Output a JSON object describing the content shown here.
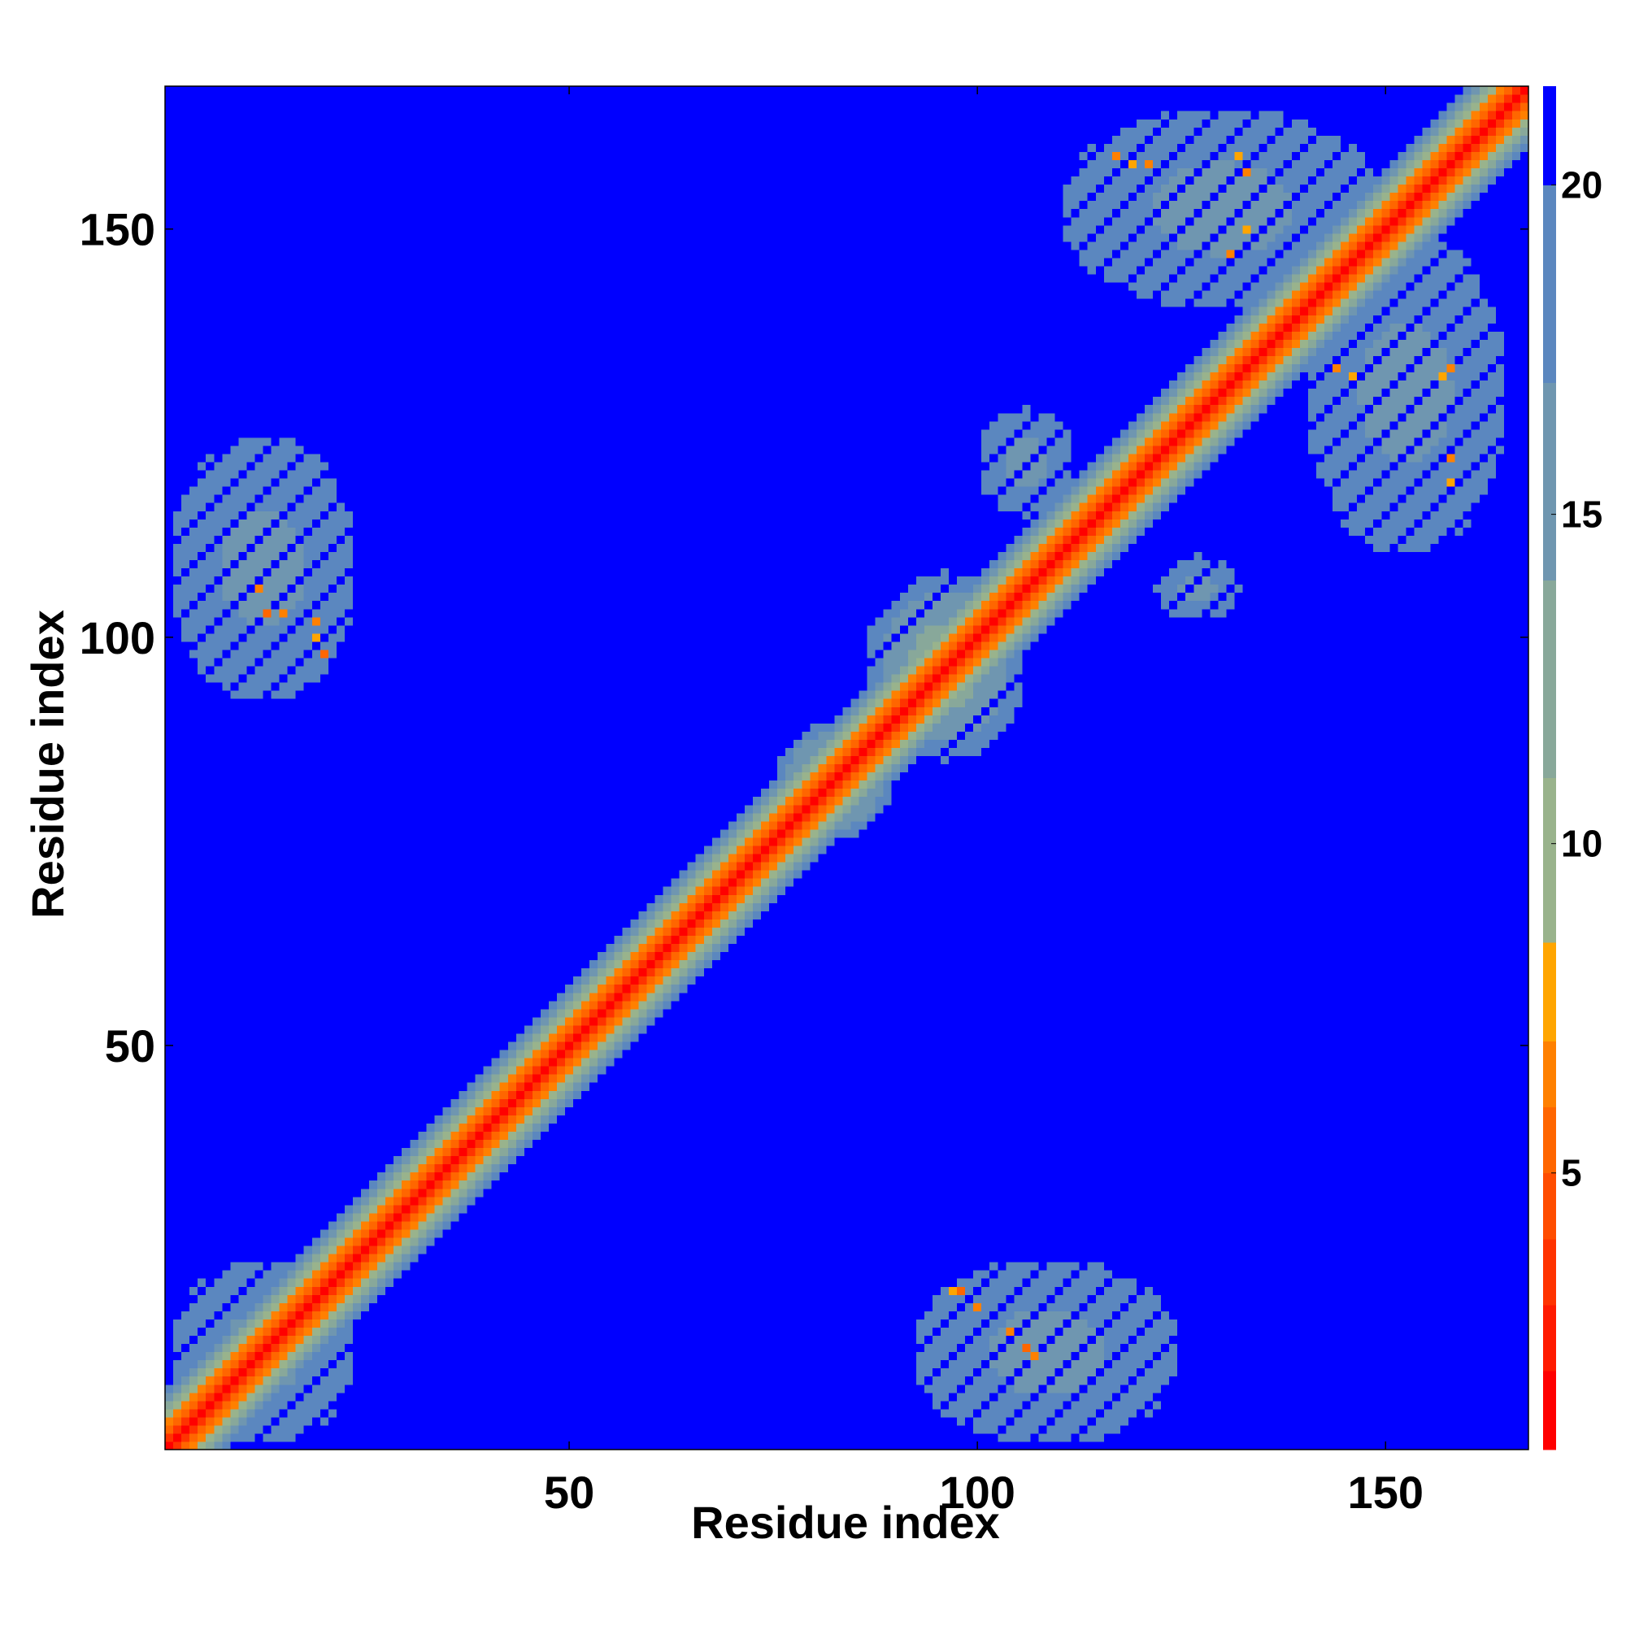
{
  "chart_data": {
    "type": "heatmap",
    "title": "",
    "xlabel": "Residue index",
    "ylabel": "Residue index",
    "n_residues": 167,
    "xlim": [
      0.5,
      167.5
    ],
    "ylim": [
      0.5,
      167.5
    ],
    "x_ticks": [
      50,
      100,
      150
    ],
    "y_ticks": [
      50,
      100,
      150
    ],
    "colorbar": {
      "range": [
        0.8,
        21.5
      ],
      "ticks": [
        5,
        10,
        15,
        20
      ],
      "levels": [
        {
          "from": 0.8,
          "to": 2.0,
          "color": "#ff0000"
        },
        {
          "from": 2.0,
          "to": 3.0,
          "color": "#ff1a00"
        },
        {
          "from": 3.0,
          "to": 4.0,
          "color": "#ff3300"
        },
        {
          "from": 4.0,
          "to": 5.0,
          "color": "#ff4d00"
        },
        {
          "from": 5.0,
          "to": 6.0,
          "color": "#ff6600"
        },
        {
          "from": 6.0,
          "to": 7.0,
          "color": "#ff8000"
        },
        {
          "from": 7.0,
          "to": 8.5,
          "color": "#ffa500"
        },
        {
          "from": 8.5,
          "to": 11.0,
          "color": "#99b38c"
        },
        {
          "from": 11.0,
          "to": 14.0,
          "color": "#88a89a"
        },
        {
          "from": 14.0,
          "to": 17.0,
          "color": "#6f96b0"
        },
        {
          "from": 17.0,
          "to": 20.0,
          "color": "#5b87bf"
        },
        {
          "from": 20.0,
          "to": 21.5,
          "color": "#0000ff"
        }
      ]
    },
    "background_value": 21,
    "diagonal_band": {
      "description": "distance grows with |i-j| along the main diagonal",
      "profile": [
        {
          "offset": 0,
          "value": 1.5
        },
        {
          "offset": 1,
          "value": 3.8
        },
        {
          "offset": 2,
          "value": 5.5
        },
        {
          "offset": 3,
          "value": 6.5
        },
        {
          "offset": 4,
          "value": 10
        },
        {
          "offset": 5,
          "value": 12.5
        },
        {
          "offset": 6,
          "value": 15.5
        },
        {
          "offset": 7,
          "value": 18.5
        }
      ]
    },
    "contact_patches": [
      {
        "x": [
          1,
          24
        ],
        "y": [
          92,
          125
        ],
        "value": 18
      },
      {
        "x": [
          92,
          125
        ],
        "y": [
          1,
          24
        ],
        "value": 18
      },
      {
        "x": [
          110,
          150
        ],
        "y": [
          140,
          165
        ],
        "value": 18
      },
      {
        "x": [
          140,
          165
        ],
        "y": [
          110,
          150
        ],
        "value": 18
      },
      {
        "x": [
          86,
          106
        ],
        "y": [
          85,
          108
        ],
        "value": 16
      },
      {
        "x": [
          100,
          112
        ],
        "y": [
          115,
          128
        ],
        "value": 18
      },
      {
        "x": [
          122,
          132
        ],
        "y": [
          102,
          110
        ],
        "value": 18
      },
      {
        "x": [
          1,
          24
        ],
        "y": [
          1,
          24
        ],
        "value": 17
      },
      {
        "x": [
          75,
          90
        ],
        "y": [
          75,
          90
        ],
        "value": 16
      },
      {
        "x": [
          56,
          66
        ],
        "y": [
          56,
          66
        ],
        "value": 16
      }
    ],
    "close_contacts": [
      {
        "x": 12,
        "y": 106,
        "value": 6
      },
      {
        "x": 13,
        "y": 103,
        "value": 5
      },
      {
        "x": 15,
        "y": 103,
        "value": 6
      },
      {
        "x": 19,
        "y": 100,
        "value": 7
      },
      {
        "x": 20,
        "y": 98,
        "value": 5
      },
      {
        "x": 19,
        "y": 102,
        "value": 6
      },
      {
        "x": 97,
        "y": 20,
        "value": 7
      },
      {
        "x": 98,
        "y": 20,
        "value": 5
      },
      {
        "x": 100,
        "y": 18,
        "value": 6
      },
      {
        "x": 104,
        "y": 15,
        "value": 6
      },
      {
        "x": 106,
        "y": 13,
        "value": 5
      },
      {
        "x": 107,
        "y": 12,
        "value": 6
      },
      {
        "x": 117,
        "y": 159,
        "value": 6
      },
      {
        "x": 119,
        "y": 158,
        "value": 7
      },
      {
        "x": 121,
        "y": 158,
        "value": 6
      },
      {
        "x": 132,
        "y": 159,
        "value": 7
      },
      {
        "x": 133,
        "y": 157,
        "value": 6
      },
      {
        "x": 133,
        "y": 150,
        "value": 7
      },
      {
        "x": 131,
        "y": 147,
        "value": 6
      },
      {
        "x": 144,
        "y": 133,
        "value": 6
      },
      {
        "x": 146,
        "y": 132,
        "value": 7
      },
      {
        "x": 158,
        "y": 133,
        "value": 6
      },
      {
        "x": 157,
        "y": 132,
        "value": 7
      },
      {
        "x": 158,
        "y": 122,
        "value": 6
      },
      {
        "x": 158,
        "y": 119,
        "value": 7
      }
    ]
  }
}
